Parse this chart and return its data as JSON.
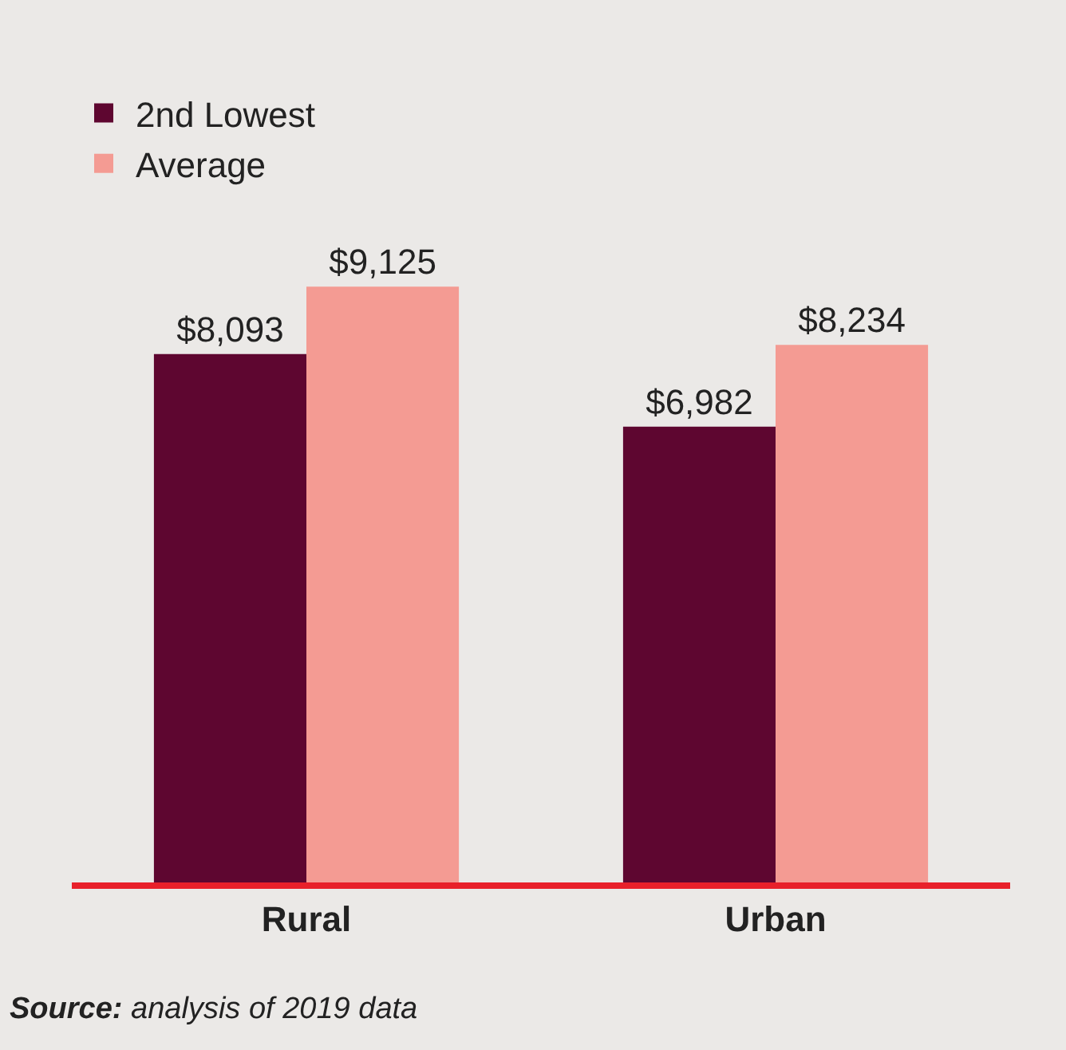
{
  "chart_data": {
    "type": "bar",
    "categories": [
      "Rural",
      "Urban"
    ],
    "series": [
      {
        "name": "2nd Lowest",
        "color": "#5e0630",
        "values": [
          8093,
          6982
        ],
        "value_labels": [
          "$8,093",
          "$6,982"
        ]
      },
      {
        "name": "Average",
        "color": "#f49b93",
        "values": [
          9125,
          8234
        ],
        "value_labels": [
          "$9,125",
          "$8,234"
        ]
      }
    ],
    "legend": "top left",
    "grid": false,
    "annotations": [
      "Source: analysis of 2019 data"
    ]
  }
}
